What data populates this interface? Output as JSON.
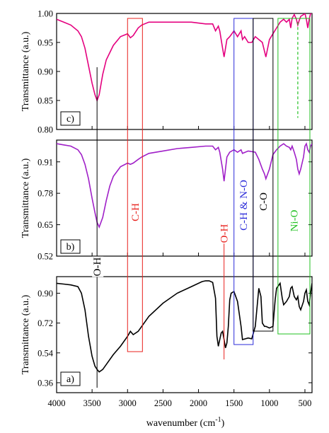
{
  "chart_data": {
    "type": "line",
    "xlabel": "wavenumber (cm",
    "xlabel_superscript": "-1",
    "xlabel_close": ")",
    "x_reversed": true,
    "xlim": [
      4000,
      400
    ],
    "xticks": [
      4000,
      3500,
      3000,
      2500,
      2000,
      1500,
      1000,
      500
    ],
    "panels": [
      {
        "tag": "c)",
        "ylabel": "Transmittance (a.u.)",
        "ylim": [
          0.8,
          1.0
        ],
        "yticks": [
          "0.80",
          "0.85",
          "0.90",
          "0.95",
          "1.00"
        ],
        "color": "#e4007f",
        "x": [
          4000,
          3900,
          3800,
          3700,
          3650,
          3600,
          3550,
          3500,
          3460,
          3430,
          3400,
          3350,
          3300,
          3200,
          3100,
          3000,
          2960,
          2920,
          2850,
          2800,
          2700,
          2500,
          2300,
          2100,
          1900,
          1800,
          1760,
          1720,
          1700,
          1660,
          1640,
          1600,
          1560,
          1500,
          1450,
          1400,
          1380,
          1350,
          1300,
          1250,
          1200,
          1150,
          1100,
          1070,
          1050,
          1000,
          950,
          900,
          850,
          800,
          760,
          720,
          700,
          680,
          650,
          620,
          600,
          580,
          560,
          520,
          500,
          480,
          460,
          440,
          420,
          400
        ],
        "y": [
          0.99,
          0.985,
          0.98,
          0.97,
          0.96,
          0.94,
          0.91,
          0.88,
          0.86,
          0.85,
          0.86,
          0.895,
          0.92,
          0.945,
          0.96,
          0.965,
          0.958,
          0.962,
          0.975,
          0.98,
          0.985,
          0.985,
          0.985,
          0.985,
          0.982,
          0.982,
          0.97,
          0.978,
          0.97,
          0.94,
          0.925,
          0.955,
          0.96,
          0.97,
          0.96,
          0.97,
          0.955,
          0.96,
          0.95,
          0.95,
          0.96,
          0.955,
          0.95,
          0.935,
          0.925,
          0.955,
          0.965,
          0.975,
          0.985,
          0.99,
          0.985,
          0.99,
          0.975,
          0.992,
          0.998,
          0.99,
          0.98,
          0.988,
          0.995,
          0.998,
          1.0,
          0.99,
          0.975,
          0.99,
          1.0,
          1.0
        ]
      },
      {
        "tag": "b)",
        "ylabel": "Transmittance (a.u.)",
        "ylim": [
          0.52,
          1.0
        ],
        "yticks": [
          "0.52",
          "0.65",
          "0.78",
          "0.91"
        ],
        "color": "#a020c8",
        "x": [
          4000,
          3900,
          3800,
          3700,
          3650,
          3600,
          3550,
          3500,
          3460,
          3430,
          3400,
          3350,
          3300,
          3250,
          3200,
          3100,
          3000,
          2960,
          2920,
          2850,
          2800,
          2700,
          2500,
          2300,
          2100,
          1900,
          1800,
          1760,
          1720,
          1700,
          1660,
          1640,
          1600,
          1560,
          1500,
          1450,
          1400,
          1380,
          1300,
          1200,
          1150,
          1100,
          1070,
          1050,
          1000,
          950,
          900,
          850,
          800,
          760,
          720,
          700,
          680,
          650,
          620,
          600,
          580,
          560,
          520,
          500,
          480,
          460,
          440,
          420,
          400
        ],
        "y": [
          0.985,
          0.98,
          0.975,
          0.96,
          0.94,
          0.9,
          0.84,
          0.76,
          0.7,
          0.66,
          0.64,
          0.68,
          0.75,
          0.81,
          0.85,
          0.89,
          0.905,
          0.9,
          0.905,
          0.92,
          0.93,
          0.945,
          0.955,
          0.965,
          0.97,
          0.975,
          0.975,
          0.96,
          0.97,
          0.95,
          0.88,
          0.83,
          0.93,
          0.95,
          0.96,
          0.95,
          0.96,
          0.945,
          0.955,
          0.95,
          0.92,
          0.88,
          0.86,
          0.84,
          0.88,
          0.94,
          0.96,
          0.975,
          0.985,
          0.975,
          0.97,
          0.96,
          0.975,
          0.95,
          0.92,
          0.88,
          0.86,
          0.88,
          0.93,
          0.975,
          0.985,
          0.96,
          0.95,
          0.975,
          0.985
        ]
      },
      {
        "tag": "a)",
        "ylabel": "Transmittance (a.u.)",
        "ylim": [
          0.3,
          1.0
        ],
        "yticks": [
          "0.36",
          "0.54",
          "0.72",
          "0.90"
        ],
        "color": "#000000",
        "x": [
          4000,
          3900,
          3800,
          3700,
          3650,
          3600,
          3550,
          3500,
          3460,
          3430,
          3400,
          3350,
          3300,
          3200,
          3100,
          3000,
          2960,
          2920,
          2850,
          2800,
          2700,
          2500,
          2300,
          2100,
          1950,
          1900,
          1850,
          1800,
          1760,
          1740,
          1720,
          1700,
          1680,
          1660,
          1640,
          1620,
          1600,
          1580,
          1560,
          1540,
          1500,
          1450,
          1400,
          1380,
          1300,
          1250,
          1200,
          1150,
          1120,
          1100,
          1070,
          1050,
          1000,
          950,
          920,
          900,
          850,
          820,
          800,
          760,
          720,
          700,
          680,
          650,
          620,
          600,
          580,
          560,
          520,
          500,
          480,
          460,
          440,
          420,
          400
        ],
        "y": [
          0.96,
          0.955,
          0.95,
          0.94,
          0.9,
          0.8,
          0.64,
          0.52,
          0.46,
          0.44,
          0.425,
          0.44,
          0.47,
          0.53,
          0.58,
          0.64,
          0.67,
          0.65,
          0.67,
          0.7,
          0.76,
          0.84,
          0.9,
          0.94,
          0.97,
          0.975,
          0.975,
          0.965,
          0.87,
          0.64,
          0.58,
          0.62,
          0.66,
          0.67,
          0.62,
          0.57,
          0.6,
          0.7,
          0.86,
          0.9,
          0.91,
          0.85,
          0.7,
          0.62,
          0.63,
          0.625,
          0.7,
          0.93,
          0.88,
          0.72,
          0.7,
          0.7,
          0.69,
          0.7,
          0.86,
          0.93,
          0.96,
          0.87,
          0.83,
          0.85,
          0.88,
          0.93,
          0.94,
          0.88,
          0.86,
          0.88,
          0.82,
          0.8,
          0.85,
          0.9,
          0.92,
          0.85,
          0.83,
          0.9,
          0.96
        ]
      }
    ],
    "annotations": [
      {
        "label": "O-H",
        "color": "#000000",
        "type": "line",
        "x": 3430
      },
      {
        "label": "C-H",
        "color": "#e8211d",
        "type": "box",
        "x1": 3000,
        "x2": 2790
      },
      {
        "label": "O-H",
        "color": "#e8211d",
        "type": "line",
        "x": 1640
      },
      {
        "label": "C-H & N-O",
        "color": "#2b2bd9",
        "type": "box",
        "x1": 1500,
        "x2": 1230
      },
      {
        "label": "C-O",
        "color": "#000000",
        "type": "box",
        "x1": 1230,
        "x2": 950
      },
      {
        "label": "Ni-O",
        "color": "#22c022",
        "type": "box",
        "x1": 880,
        "x2": 430
      }
    ]
  }
}
